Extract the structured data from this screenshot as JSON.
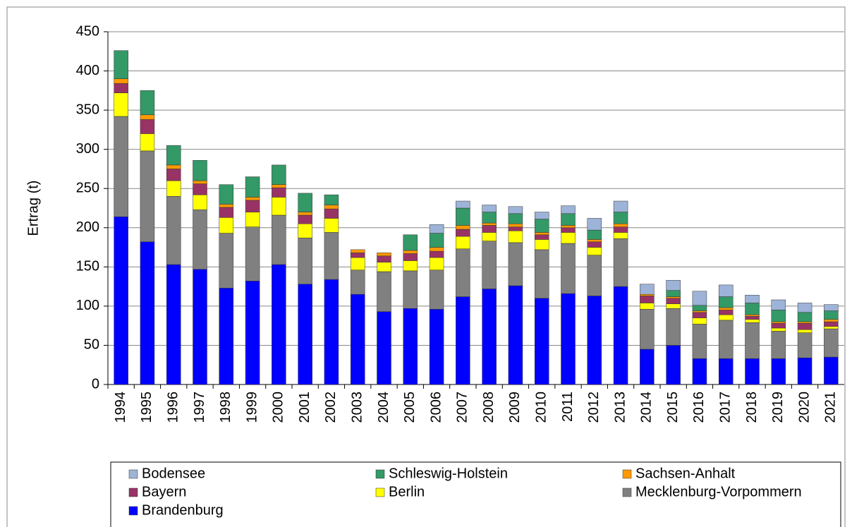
{
  "chart_data": {
    "type": "stacked-bar",
    "y_label": "Ertrag (t)",
    "categories": [
      "1994",
      "1995",
      "1996",
      "1997",
      "1998",
      "1999",
      "2000",
      "2001",
      "2002",
      "2003",
      "2004",
      "2005",
      "2006",
      "2007",
      "2008",
      "2009",
      "2010",
      "2011",
      "2012",
      "2013",
      "2014",
      "2015",
      "2016",
      "2017",
      "2018",
      "2019",
      "2020",
      "2021"
    ],
    "series": [
      {
        "name": "Bodensee",
        "color": "#9db3d8",
        "values": [
          0,
          0,
          0,
          0,
          0,
          0,
          0,
          0,
          0,
          0,
          0,
          0,
          11,
          9,
          9,
          9,
          9,
          10,
          15,
          14,
          13,
          13,
          18,
          15,
          10,
          13,
          12,
          8
        ]
      },
      {
        "name": "Schleswig-Holstein",
        "color": "#339966",
        "values": [
          36,
          31,
          25,
          26,
          25,
          26,
          25,
          24,
          13,
          0,
          0,
          20,
          18,
          22,
          14,
          13,
          17,
          15,
          12,
          15,
          0,
          8,
          7,
          14,
          15,
          15,
          12,
          11
        ]
      },
      {
        "name": "Sachsen-Anhalt",
        "color": "#ff9900",
        "values": [
          6,
          6,
          5,
          4,
          4,
          4,
          4,
          4,
          5,
          4,
          4,
          4,
          5,
          5,
          3,
          4,
          3,
          3,
          3,
          4,
          2,
          2,
          2,
          3,
          2,
          2,
          2,
          3
        ]
      },
      {
        "name": "Bayern",
        "color": "#993366",
        "values": [
          12,
          18,
          15,
          14,
          13,
          15,
          12,
          11,
          12,
          6,
          8,
          9,
          8,
          9,
          9,
          5,
          6,
          6,
          7,
          7,
          9,
          7,
          7,
          6,
          4,
          6,
          8,
          6
        ]
      },
      {
        "name": "Berlin",
        "color": "#ffff00",
        "values": [
          30,
          22,
          20,
          19,
          20,
          19,
          23,
          18,
          18,
          16,
          12,
          13,
          16,
          16,
          11,
          15,
          13,
          14,
          10,
          8,
          8,
          6,
          8,
          7,
          4,
          4,
          4,
          3
        ]
      },
      {
        "name": "Mecklenburg-Vorpommern",
        "color": "#808080",
        "values": [
          128,
          116,
          87,
          76,
          70,
          69,
          63,
          59,
          60,
          31,
          51,
          48,
          50,
          61,
          61,
          55,
          62,
          64,
          52,
          61,
          51,
          47,
          44,
          49,
          46,
          35,
          32,
          36
        ]
      },
      {
        "name": "Brandenburg",
        "color": "#0000ff",
        "values": [
          214,
          182,
          153,
          147,
          123,
          132,
          153,
          128,
          134,
          115,
          93,
          97,
          96,
          112,
          122,
          126,
          110,
          116,
          113,
          125,
          45,
          50,
          33,
          33,
          33,
          33,
          34,
          35
        ]
      }
    ],
    "ylim": [
      0,
      450
    ],
    "yticks": [
      0,
      50,
      100,
      150,
      200,
      250,
      300,
      350,
      400,
      450
    ],
    "grid": true
  }
}
